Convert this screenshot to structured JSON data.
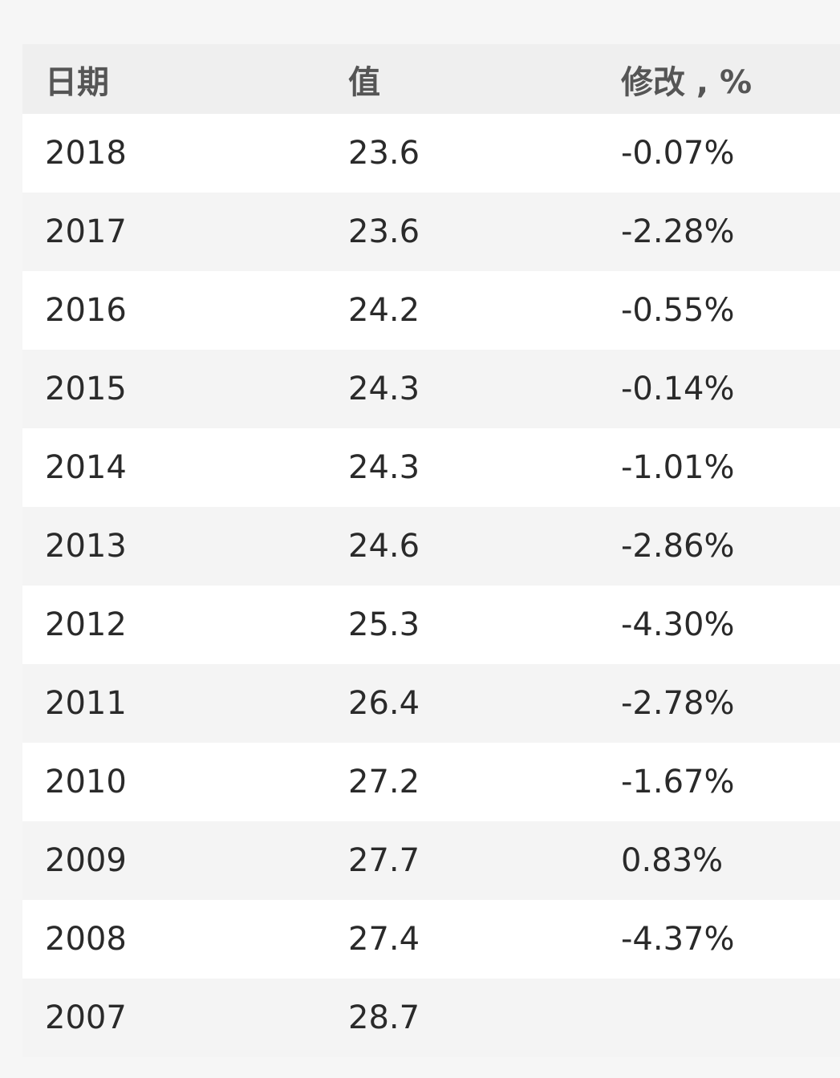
{
  "table": {
    "header": [
      "日期",
      "值",
      "修改 , %"
    ],
    "rows": [
      [
        "2018",
        "23.6",
        "-0.07%"
      ],
      [
        "2017",
        "23.6",
        "-2.28%"
      ],
      [
        "2016",
        "24.2",
        "-0.55%"
      ],
      [
        "2015",
        "24.3",
        "-0.14%"
      ],
      [
        "2014",
        "24.3",
        "-1.01%"
      ],
      [
        "2013",
        "24.6",
        "-2.86%"
      ],
      [
        "2012",
        "25.3",
        "-4.30%"
      ],
      [
        "2011",
        "26.4",
        "-2.78%"
      ],
      [
        "2010",
        "27.2",
        "-1.67%"
      ],
      [
        "2009",
        "27.7",
        "0.83%"
      ],
      [
        "2008",
        "27.4",
        "-4.37%"
      ],
      [
        "2007",
        "28.7"
      ]
    ]
  }
}
